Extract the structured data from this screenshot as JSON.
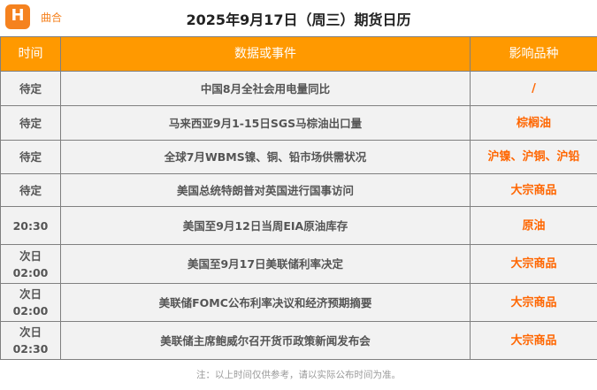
{
  "header": {
    "brand": "曲合",
    "title": "2025年9月17日（周三）期货日历"
  },
  "columns": [
    "时间",
    "数据或事件",
    "影响品种"
  ],
  "rows": [
    {
      "time": "待定",
      "event": "中国8月全社会用电量同比",
      "impact": "/"
    },
    {
      "time": "待定",
      "event": "马来西亚9月1-15日SGS马棕油出口量",
      "impact": "棕榈油"
    },
    {
      "time": "待定",
      "event": "全球7月WBMS镍、铜、铅市场供需状况",
      "impact": "沪镍、沪铜、沪铅"
    },
    {
      "time": "待定",
      "event": "美国总统特朗普对英国进行国事访问",
      "impact": "大宗商品"
    },
    {
      "time": "20:30",
      "event": "美国至9月12日当周EIA原油库存",
      "impact": "原油"
    },
    {
      "time": "次日\n02:00",
      "event": "美国至9月17日美联储利率决定",
      "impact": "大宗商品"
    },
    {
      "time": "次日\n02:00",
      "event": "美联储FOMC公布利率决议和经济预期摘要",
      "impact": "大宗商品"
    },
    {
      "time": "次日\n02:30",
      "event": "美联储主席鲍威尔召开货币政策新闻发布会",
      "impact": "大宗商品"
    }
  ],
  "note": "注：以上时间仅供参考，请以实际公布时间为准。",
  "colors": {
    "header_bg": "#ff9900",
    "impact": "#ff6600",
    "brand": "#f5821f"
  }
}
